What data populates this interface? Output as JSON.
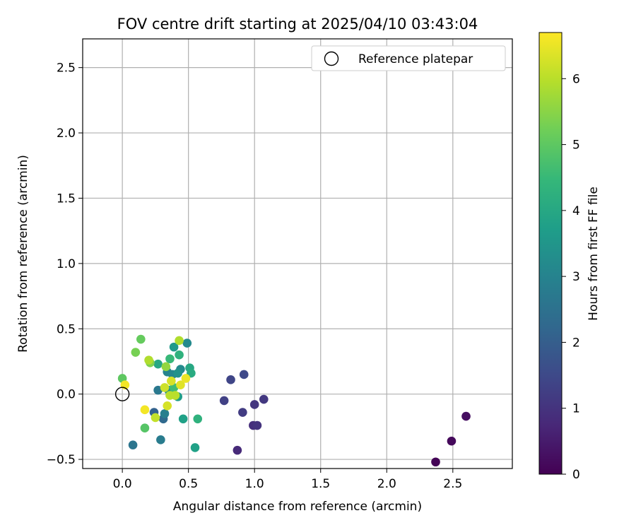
{
  "chart_data": {
    "type": "scatter",
    "title": "FOV centre drift starting at 2025/04/10 03:43:04",
    "xlabel": "Angular distance from reference (arcmin)",
    "ylabel": "Rotation from reference (arcmin)",
    "xlim": [
      -0.3,
      2.95
    ],
    "ylim": [
      -0.57,
      2.72
    ],
    "xticks": [
      0.0,
      0.5,
      1.0,
      1.5,
      2.0,
      2.5
    ],
    "xtick_labels": [
      "0.0",
      "0.5",
      "1.0",
      "1.5",
      "2.0",
      "2.5"
    ],
    "yticks": [
      -0.5,
      0.0,
      0.5,
      1.0,
      1.5,
      2.0,
      2.5
    ],
    "ytick_labels": [
      "−0.5",
      "0.0",
      "0.5",
      "1.0",
      "1.5",
      "2.0",
      "2.5"
    ],
    "grid": true,
    "legend": {
      "placement": "top-right",
      "entries": [
        "Reference platepar"
      ]
    },
    "reference_point": {
      "name": "Reference platepar",
      "x": 0.0,
      "y": 0.0
    },
    "colorbar": {
      "label": "Hours from first FF file",
      "colormap": "viridis",
      "min": 0,
      "max": 6.7,
      "ticks": [
        0,
        1,
        2,
        3,
        4,
        5,
        6
      ],
      "tick_labels": [
        "0",
        "1",
        "2",
        "3",
        "4",
        "5",
        "6"
      ],
      "stops": [
        "#440154",
        "#482878",
        "#3e4989",
        "#31688e",
        "#26828e",
        "#1f9e89",
        "#35b779",
        "#6ece58",
        "#b5de2b",
        "#fde725"
      ]
    },
    "points": [
      {
        "x": 2.37,
        "y": -0.52,
        "t": 0.05
      },
      {
        "x": 2.49,
        "y": -0.36,
        "t": 0.15
      },
      {
        "x": 2.6,
        "y": -0.17,
        "t": 0.25
      },
      {
        "x": 0.87,
        "y": -0.43,
        "t": 0.8
      },
      {
        "x": 0.99,
        "y": -0.24,
        "t": 0.9
      },
      {
        "x": 1.02,
        "y": -0.24,
        "t": 1.0
      },
      {
        "x": 1.0,
        "y": -0.08,
        "t": 1.05
      },
      {
        "x": 1.07,
        "y": -0.04,
        "t": 1.1
      },
      {
        "x": 0.91,
        "y": -0.14,
        "t": 1.2
      },
      {
        "x": 0.77,
        "y": -0.05,
        "t": 1.3
      },
      {
        "x": 0.82,
        "y": 0.11,
        "t": 1.4
      },
      {
        "x": 0.92,
        "y": 0.15,
        "t": 1.5
      },
      {
        "x": 0.24,
        "y": -0.14,
        "t": 2.1
      },
      {
        "x": 0.31,
        "y": -0.19,
        "t": 2.3
      },
      {
        "x": 0.08,
        "y": -0.39,
        "t": 2.6
      },
      {
        "x": 0.29,
        "y": -0.35,
        "t": 2.8
      },
      {
        "x": 0.27,
        "y": 0.03,
        "t": 2.7
      },
      {
        "x": 0.32,
        "y": -0.15,
        "t": 2.9
      },
      {
        "x": 0.34,
        "y": 0.17,
        "t": 3.0
      },
      {
        "x": 0.38,
        "y": 0.15,
        "t": 3.1
      },
      {
        "x": 0.44,
        "y": 0.19,
        "t": 3.2
      },
      {
        "x": 0.49,
        "y": 0.39,
        "t": 3.2
      },
      {
        "x": 0.35,
        "y": 0.03,
        "t": 3.3
      },
      {
        "x": 0.42,
        "y": 0.16,
        "t": 3.4
      },
      {
        "x": 0.39,
        "y": 0.36,
        "t": 3.6
      },
      {
        "x": 0.42,
        "y": -0.02,
        "t": 3.7
      },
      {
        "x": 0.46,
        "y": -0.19,
        "t": 3.8
      },
      {
        "x": 0.55,
        "y": -0.41,
        "t": 3.8
      },
      {
        "x": 0.27,
        "y": 0.23,
        "t": 4.0
      },
      {
        "x": 0.51,
        "y": 0.2,
        "t": 4.0
      },
      {
        "x": 0.52,
        "y": 0.16,
        "t": 4.1
      },
      {
        "x": 0.43,
        "y": 0.3,
        "t": 4.3
      },
      {
        "x": 0.57,
        "y": -0.19,
        "t": 4.3
      },
      {
        "x": 0.36,
        "y": 0.27,
        "t": 4.5
      },
      {
        "x": 0.39,
        "y": 0.05,
        "t": 4.6
      },
      {
        "x": 0.17,
        "y": -0.26,
        "t": 4.9
      },
      {
        "x": 0.0,
        "y": 0.12,
        "t": 5.0
      },
      {
        "x": 0.14,
        "y": 0.42,
        "t": 5.1
      },
      {
        "x": 0.1,
        "y": 0.32,
        "t": 5.3
      },
      {
        "x": 0.21,
        "y": 0.24,
        "t": 5.4
      },
      {
        "x": 0.33,
        "y": 0.21,
        "t": 5.6
      },
      {
        "x": 0.43,
        "y": 0.41,
        "t": 5.9
      },
      {
        "x": 0.2,
        "y": 0.26,
        "t": 5.9
      },
      {
        "x": 0.36,
        "y": -0.01,
        "t": 6.0
      },
      {
        "x": 0.4,
        "y": -0.01,
        "t": 6.0
      },
      {
        "x": 0.25,
        "y": -0.18,
        "t": 6.1
      },
      {
        "x": 0.32,
        "y": 0.05,
        "t": 6.2
      },
      {
        "x": 0.34,
        "y": -0.09,
        "t": 6.3
      },
      {
        "x": 0.37,
        "y": 0.1,
        "t": 6.3
      },
      {
        "x": 0.44,
        "y": 0.07,
        "t": 6.4
      },
      {
        "x": 0.48,
        "y": 0.12,
        "t": 6.5
      },
      {
        "x": 0.02,
        "y": 0.07,
        "t": 6.6
      },
      {
        "x": 0.17,
        "y": -0.12,
        "t": 6.6
      }
    ]
  }
}
